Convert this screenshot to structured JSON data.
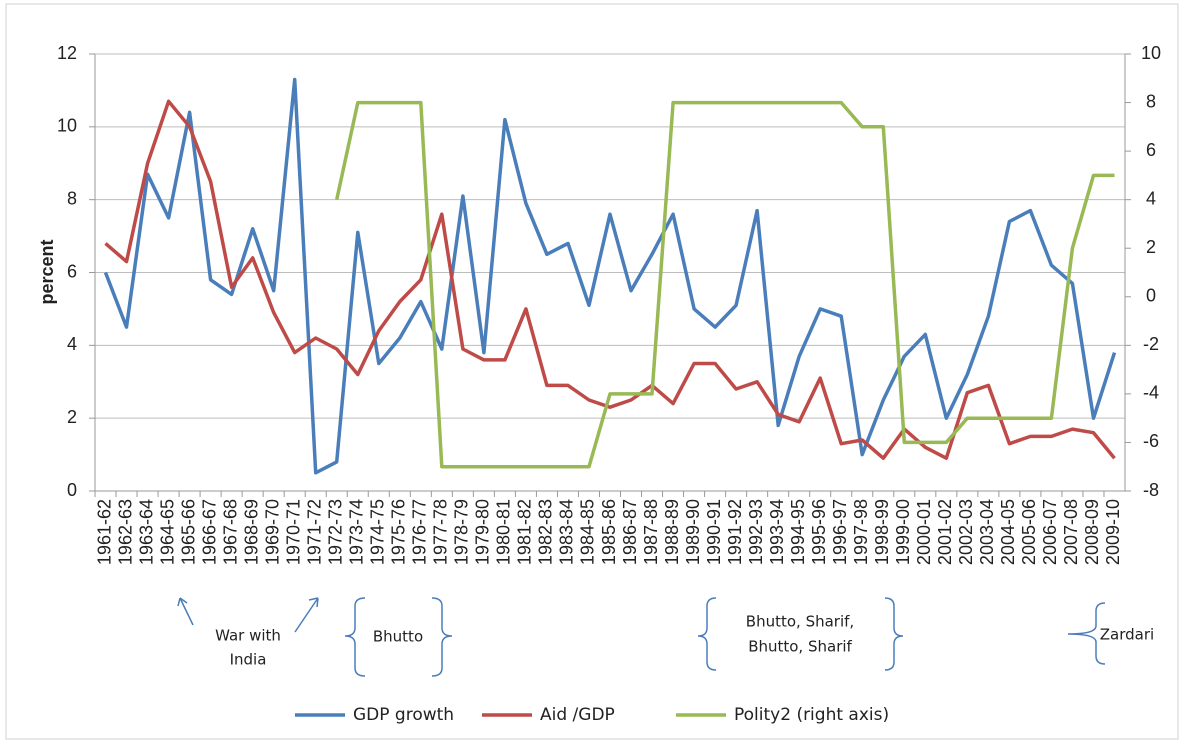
{
  "chart_data": {
    "type": "line",
    "y_label": "percent",
    "categories": [
      "1961-62",
      "1962-63",
      "1963-64",
      "1964-65",
      "1965-66",
      "1966-67",
      "1967-68",
      "1968-69",
      "1969-70",
      "1970-71",
      "1971-72",
      "1972-73",
      "1973-74",
      "1974-75",
      "1975-76",
      "1976-77",
      "1977-78",
      "1978-79",
      "1979-80",
      "1980-81",
      "1981-82",
      "1982-83",
      "1983-84",
      "1984-85",
      "1985-86",
      "1986-87",
      "1987-88",
      "1988-89",
      "1989-90",
      "1990-91",
      "1991-92",
      "1992-93",
      "1993-94",
      "1994-95",
      "1995-96",
      "1996-97",
      "1997-98",
      "1998-99",
      "1999-00",
      "2000-01",
      "2001-02",
      "2002-03",
      "2003-04",
      "2004-05",
      "2005-06",
      "2006-07",
      "2007-08",
      "2008-09",
      "2009-10"
    ],
    "series": [
      {
        "name": "GDP growth",
        "color": "#4a7ebb",
        "values": [
          6.0,
          4.5,
          8.7,
          7.5,
          10.4,
          5.8,
          5.4,
          7.2,
          5.5,
          11.3,
          0.5,
          0.8,
          7.1,
          3.5,
          4.2,
          5.2,
          3.9,
          8.1,
          3.8,
          10.2,
          7.9,
          6.5,
          6.8,
          5.1,
          7.6,
          5.5,
          6.5,
          7.6,
          5.0,
          4.5,
          5.1,
          7.7,
          1.8,
          3.7,
          5.0,
          4.8,
          1.0,
          2.5,
          3.7,
          4.3,
          2.0,
          3.2,
          4.8,
          7.4,
          7.7,
          6.2,
          5.7,
          2.0,
          3.8
        ]
      },
      {
        "name": "Aid /GDP",
        "color": "#be4b48",
        "values": [
          6.8,
          6.3,
          9.0,
          10.7,
          10.0,
          8.5,
          5.6,
          6.4,
          4.9,
          3.8,
          4.2,
          3.9,
          3.2,
          4.4,
          5.2,
          5.8,
          7.6,
          3.9,
          3.6,
          3.6,
          5.0,
          2.9,
          2.9,
          2.5,
          2.3,
          2.5,
          2.9,
          2.4,
          3.5,
          3.5,
          2.8,
          3.0,
          2.1,
          1.9,
          3.1,
          1.3,
          1.4,
          0.9,
          1.7,
          1.2,
          0.9,
          2.7,
          2.9,
          1.3,
          1.5,
          1.5,
          1.7,
          1.6,
          0.9
        ]
      },
      {
        "name": "Polity2 (right axis)",
        "color": "#98b954",
        "axis": "y2",
        "values": [
          null,
          null,
          null,
          null,
          null,
          null,
          null,
          null,
          null,
          null,
          null,
          4,
          8,
          8,
          8,
          8,
          -7,
          -7,
          -7,
          -7,
          -7,
          -7,
          -7,
          -7,
          -4,
          -4,
          -4,
          8,
          8,
          8,
          8,
          8,
          8,
          8,
          8,
          8,
          7,
          7,
          -6,
          -6,
          -6,
          -5,
          -5,
          -5,
          -5,
          -5,
          2,
          5,
          5
        ]
      }
    ],
    "ylim": [
      0,
      12
    ],
    "yticks": [
      0,
      2,
      4,
      6,
      8,
      10,
      12
    ],
    "y2lim": [
      -8,
      10
    ],
    "y2ticks": [
      -8,
      -6,
      -4,
      -2,
      0,
      2,
      4,
      6,
      8,
      10
    ],
    "grid": true,
    "legend": "bottom",
    "annotations": [
      {
        "lines": [
          "War with",
          "India"
        ]
      },
      {
        "lines": [
          "Bhutto"
        ]
      },
      {
        "lines": [
          "Bhutto, Sharif,",
          "Bhutto, Sharif"
        ]
      },
      {
        "lines": [
          "Zardari"
        ]
      }
    ]
  }
}
